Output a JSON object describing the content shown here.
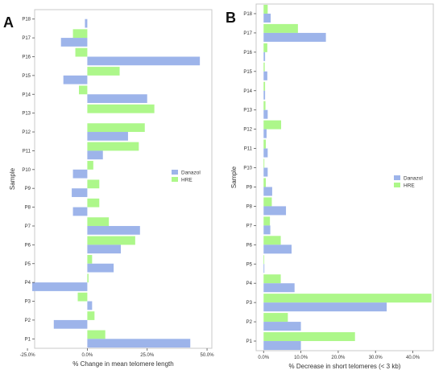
{
  "panels": {
    "a": {
      "label": "A"
    },
    "b": {
      "label": "B"
    }
  },
  "colors": {
    "danazol": "#9db4ea",
    "hre": "#adf78a",
    "frame": "#c9c9c9",
    "text": "#333333"
  },
  "chart_data": [
    {
      "type": "bar",
      "orientation": "horizontal",
      "title": "",
      "xlabel": "% Change in mean telomere length",
      "ylabel": "Sample",
      "xlim": [
        -0.22,
        0.52
      ],
      "xticks": [
        -0.25,
        0.0,
        0.25,
        0.5
      ],
      "xtick_labels": [
        "-25.0%",
        "0.0%",
        "25.0%",
        "50.0%"
      ],
      "categories": [
        "P1",
        "P2",
        "P3",
        "P4",
        "P5",
        "P6",
        "P7",
        "P8",
        "P9",
        "P10",
        "P11",
        "P12",
        "P13",
        "P14",
        "P15",
        "P16",
        "P17",
        "P18"
      ],
      "series": [
        {
          "name": "Danazol",
          "values": [
            0.43,
            -0.14,
            0.02,
            -0.23,
            0.11,
            0.14,
            0.22,
            -0.06,
            -0.065,
            -0.06,
            0.065,
            0.17,
            null,
            0.25,
            -0.1,
            0.47,
            -0.11,
            -0.01
          ]
        },
        {
          "name": "HRE",
          "values": [
            0.075,
            0.03,
            -0.04,
            0.005,
            0.02,
            0.2,
            0.09,
            0.05,
            0.05,
            0.025,
            0.215,
            0.24,
            0.28,
            -0.035,
            0.135,
            -0.05,
            -0.06,
            null
          ]
        }
      ],
      "legend": {
        "position": "right",
        "entries": [
          "Danazol",
          "HRE"
        ]
      },
      "grid": false
    },
    {
      "type": "bar",
      "orientation": "horizontal",
      "title": "",
      "xlabel": "% Decrease in short telomeres (< 3 kb)",
      "ylabel": "Sample",
      "xlim": [
        -0.02,
        0.455
      ],
      "xticks": [
        0.0,
        0.1,
        0.2,
        0.3,
        0.4
      ],
      "xtick_labels": [
        "0.0%",
        "10.0%",
        "20.0%",
        "30.0%",
        "40.0%"
      ],
      "categories": [
        "P1",
        "P2",
        "P3",
        "P4",
        "P5",
        "P6",
        "P7",
        "P8",
        "P9",
        "P10",
        "P11",
        "P12",
        "P13",
        "P14",
        "P15",
        "P16",
        "P17",
        "P18"
      ],
      "series": [
        {
          "name": "Danazol",
          "values": [
            0.1,
            0.1,
            0.33,
            0.083,
            0.002,
            0.075,
            0.018,
            0.06,
            0.023,
            0.011,
            0.011,
            0.008,
            0.011,
            0.004,
            0.01,
            0.004,
            0.167,
            0.019
          ]
        },
        {
          "name": "HRE",
          "values": [
            0.245,
            0.065,
            0.45,
            0.046,
            0.0,
            0.046,
            0.017,
            0.022,
            0.006,
            0.002,
            0.006,
            0.047,
            0.005,
            0.004,
            0.003,
            0.01,
            0.092,
            0.011
          ]
        }
      ],
      "legend": {
        "position": "right",
        "entries": [
          "Danazol",
          "HRE"
        ]
      },
      "grid": false
    }
  ]
}
